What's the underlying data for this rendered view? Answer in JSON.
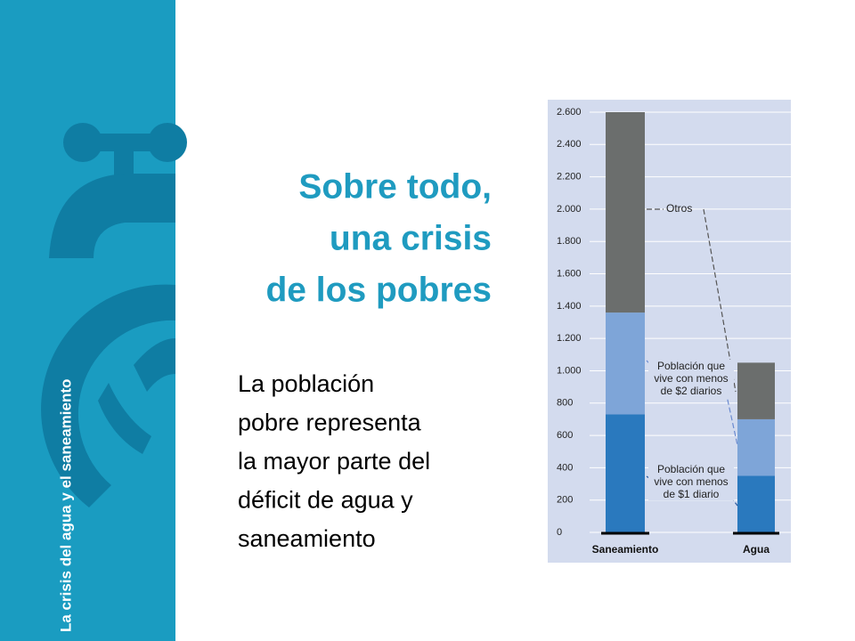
{
  "sidebar_text": "La crisis del agua y el saneamiento",
  "title_lines": [
    "Sobre todo,",
    "una crisis",
    "de los pobres"
  ],
  "body_lines": [
    "La población",
    "pobre representa",
    "la mayor parte del",
    "déficit de agua y",
    "saneamiento"
  ],
  "chart_data": {
    "type": "bar",
    "stacked": true,
    "categories": [
      "Saneamiento",
      "Agua"
    ],
    "series": [
      {
        "name": "Población que vive con menos de $1 diario",
        "color": "#2a79be",
        "values": [
          730,
          350
        ]
      },
      {
        "name": "Población que vive con menos de $2 diarios",
        "color": "#7ea5d8",
        "values": [
          630,
          350
        ]
      },
      {
        "name": "Otros",
        "color": "#6b6e6d",
        "values": [
          1240,
          350
        ]
      }
    ],
    "ylim": [
      0,
      2600
    ],
    "yticks": [
      0,
      200,
      400,
      600,
      800,
      {
        "value": 1000,
        "label": "1.000"
      },
      {
        "value": 1200,
        "label": "1.200"
      },
      {
        "value": 1400,
        "label": "1.400"
      },
      {
        "value": 1600,
        "label": "1.600"
      },
      {
        "value": 1800,
        "label": "1.800"
      },
      {
        "value": 2000,
        "label": "2.000"
      },
      {
        "value": 2200,
        "label": "2.200"
      },
      {
        "value": 2400,
        "label": "2.400"
      },
      {
        "value": 2600,
        "label": "2.600"
      }
    ],
    "grid": true
  }
}
